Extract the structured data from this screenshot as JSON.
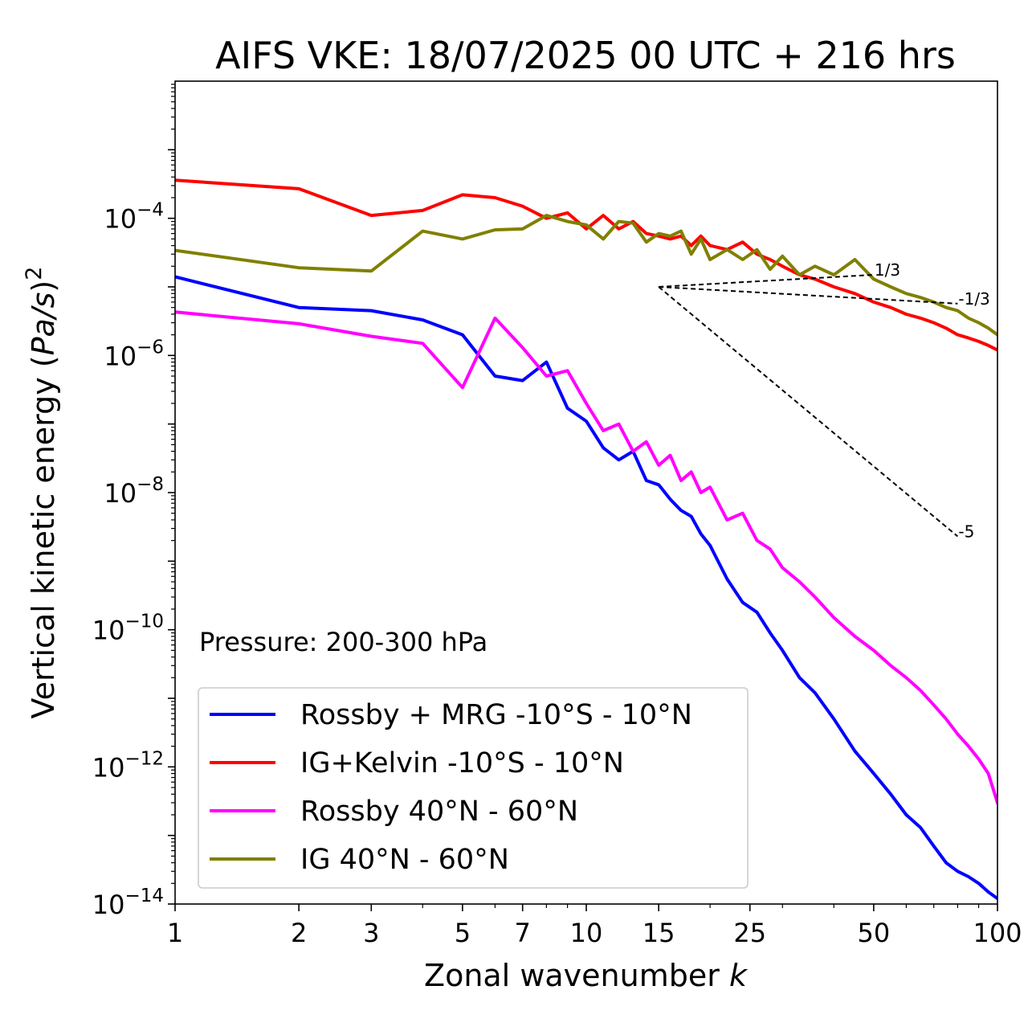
{
  "chart_data": {
    "type": "line",
    "title": "AIFS VKE: 18/07/2025 00 UTC + 216 hrs",
    "xlabel": "Zonal wavenumber ",
    "xlabel_italic": "k",
    "ylabel_prefix": "Vertical kinetic energy (",
    "ylabel_italic": "Pa/s",
    "ylabel_suffix": ")",
    "ylabel_power": "2",
    "x_scale": "log",
    "y_scale": "log",
    "xlim": [
      1,
      100
    ],
    "ylim": [
      1e-14,
      0.01
    ],
    "x_ticks": [
      1,
      2,
      3,
      5,
      7,
      10,
      15,
      25,
      50,
      100
    ],
    "x_tick_labels": [
      "1",
      "2",
      "3",
      "5",
      "7",
      "10",
      "15",
      "25",
      "50",
      "100"
    ],
    "y_ticks": [
      1e-14,
      1e-12,
      1e-10,
      1e-08,
      1e-06,
      0.0001
    ],
    "y_tick_bases": [
      "10",
      "10",
      "10",
      "10",
      "10",
      "10"
    ],
    "y_tick_powers": [
      "−14",
      "−12",
      "−10",
      "−8",
      "−6",
      "−4"
    ],
    "annotation": "Pressure: 200-300 hPa",
    "legend_position": "lower-left",
    "grid": false,
    "reference_slopes": [
      {
        "label": "1/3",
        "x": [
          15,
          50
        ],
        "y": [
          1e-05,
          1.5e-05
        ]
      },
      {
        "label": "-1/3",
        "x": [
          15,
          80
        ],
        "y": [
          1e-05,
          5.7e-06
        ]
      },
      {
        "label": "-5",
        "x": [
          15,
          80
        ],
        "y": [
          1e-05,
          2.3e-09
        ]
      }
    ],
    "series": [
      {
        "name": "Rossby + MRG -10°S - 10°N",
        "color": "#0000ff",
        "x": [
          1,
          2,
          3,
          4,
          5,
          6,
          7,
          8,
          9,
          10,
          11,
          12,
          13,
          14,
          15,
          16,
          17,
          18,
          19,
          20,
          22,
          24,
          26,
          28,
          30,
          33,
          36,
          40,
          45,
          50,
          55,
          60,
          65,
          70,
          75,
          80,
          85,
          90,
          95,
          100
        ],
        "y": [
          1.4e-05,
          5e-06,
          4.5e-06,
          3.3e-06,
          2e-06,
          5e-07,
          4.3e-07,
          8e-07,
          1.7e-07,
          1.1e-07,
          4.5e-08,
          3e-08,
          4e-08,
          1.5e-08,
          1.3e-08,
          8e-09,
          5.5e-09,
          4.5e-09,
          2.5e-09,
          1.7e-09,
          5.5e-10,
          2.5e-10,
          1.8e-10,
          9e-11,
          5e-11,
          2e-11,
          1.2e-11,
          5e-12,
          1.7e-12,
          8e-13,
          4e-13,
          2e-13,
          1.3e-13,
          7e-14,
          4e-14,
          3e-14,
          2.5e-14,
          2e-14,
          1.5e-14,
          1.2e-14
        ]
      },
      {
        "name": "IG+Kelvin -10°S - 10°N",
        "color": "#ff0000",
        "x": [
          1,
          2,
          3,
          4,
          5,
          6,
          7,
          8,
          9,
          10,
          11,
          12,
          13,
          14,
          15,
          16,
          17,
          18,
          19,
          20,
          22,
          24,
          26,
          28,
          30,
          33,
          36,
          40,
          45,
          50,
          55,
          60,
          65,
          70,
          75,
          80,
          85,
          90,
          95,
          100
        ],
        "y": [
          0.00036,
          0.00027,
          0.00011,
          0.00013,
          0.00022,
          0.0002,
          0.00015,
          0.0001,
          0.00012,
          7e-05,
          0.00011,
          7e-05,
          9e-05,
          6e-05,
          5.5e-05,
          5e-05,
          5.5e-05,
          4e-05,
          5.5e-05,
          4e-05,
          3.5e-05,
          4.5e-05,
          3e-05,
          2.5e-05,
          2e-05,
          1.5e-05,
          1.3e-05,
          1e-05,
          8e-06,
          6e-06,
          5e-06,
          4e-06,
          3.5e-06,
          3e-06,
          2.5e-06,
          2e-06,
          1.8e-06,
          1.6e-06,
          1.4e-06,
          1.2e-06
        ]
      },
      {
        "name": "Rossby 40°N - 60°N",
        "color": "#ff00ff",
        "x": [
          1,
          2,
          3,
          4,
          5,
          6,
          7,
          8,
          9,
          10,
          11,
          12,
          13,
          14,
          15,
          16,
          17,
          18,
          19,
          20,
          22,
          24,
          26,
          28,
          30,
          33,
          36,
          40,
          45,
          50,
          55,
          60,
          65,
          70,
          75,
          80,
          85,
          90,
          95,
          100
        ],
        "y": [
          4.3e-06,
          2.9e-06,
          1.9e-06,
          1.5e-06,
          3.4e-07,
          3.5e-06,
          1.3e-06,
          5e-07,
          6e-07,
          2e-07,
          8e-08,
          1e-07,
          4e-08,
          5.5e-08,
          2.5e-08,
          3.5e-08,
          1.5e-08,
          2e-08,
          1e-08,
          1.2e-08,
          4e-09,
          5e-09,
          2e-09,
          1.5e-09,
          8e-10,
          5e-10,
          3e-10,
          1.5e-10,
          8e-11,
          5e-11,
          3e-11,
          2e-11,
          1.3e-11,
          8e-12,
          5e-12,
          3e-12,
          2e-12,
          1.3e-12,
          8e-13,
          3e-13
        ]
      },
      {
        "name": "IG 40°N - 60°N",
        "color": "#808000",
        "x": [
          1,
          2,
          3,
          4,
          5,
          6,
          7,
          8,
          9,
          10,
          11,
          12,
          13,
          14,
          15,
          16,
          17,
          18,
          19,
          20,
          22,
          24,
          26,
          28,
          30,
          33,
          36,
          40,
          45,
          50,
          55,
          60,
          65,
          70,
          75,
          80,
          85,
          90,
          95,
          100
        ],
        "y": [
          3.4e-05,
          1.9e-05,
          1.7e-05,
          6.5e-05,
          5e-05,
          6.8e-05,
          7e-05,
          0.00011,
          9e-05,
          8e-05,
          5e-05,
          9e-05,
          8.5e-05,
          4.5e-05,
          6e-05,
          5.5e-05,
          6.5e-05,
          3e-05,
          5e-05,
          2.5e-05,
          3.5e-05,
          2.5e-05,
          3.5e-05,
          1.8e-05,
          2.8e-05,
          1.5e-05,
          2e-05,
          1.5e-05,
          2.5e-05,
          1.3e-05,
          1e-05,
          8e-06,
          7e-06,
          6e-06,
          5e-06,
          4.5e-06,
          3.5e-06,
          3e-06,
          2.5e-06,
          2e-06
        ]
      }
    ]
  }
}
